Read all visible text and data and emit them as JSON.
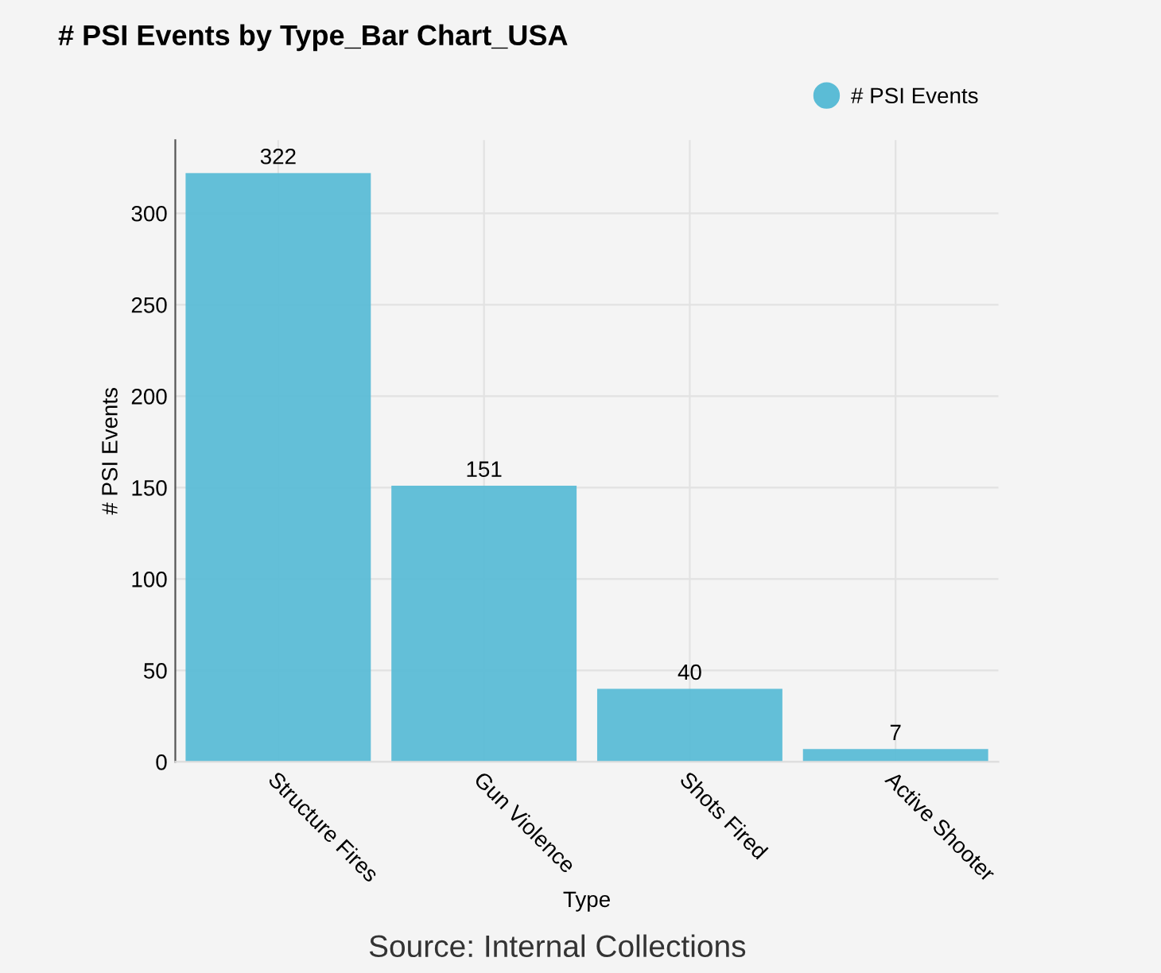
{
  "chart_data": {
    "type": "bar",
    "title": "# PSI Events by Type_Bar Chart_USA",
    "xlabel": "Type",
    "ylabel": "# PSI Events",
    "categories": [
      "Structure Fires",
      "Gun Violence",
      "Shots Fired",
      "Active Shooter"
    ],
    "series": [
      {
        "name": "# PSI Events",
        "color": "#5bbcd6",
        "values": [
          322,
          151,
          40,
          7
        ]
      }
    ],
    "ylim": [
      0,
      340
    ],
    "yticks": [
      0,
      50,
      100,
      150,
      200,
      250,
      300
    ],
    "grid": true,
    "legend": "top right",
    "data_labels": true,
    "annotations": [
      "Source: Internal Collections"
    ]
  }
}
